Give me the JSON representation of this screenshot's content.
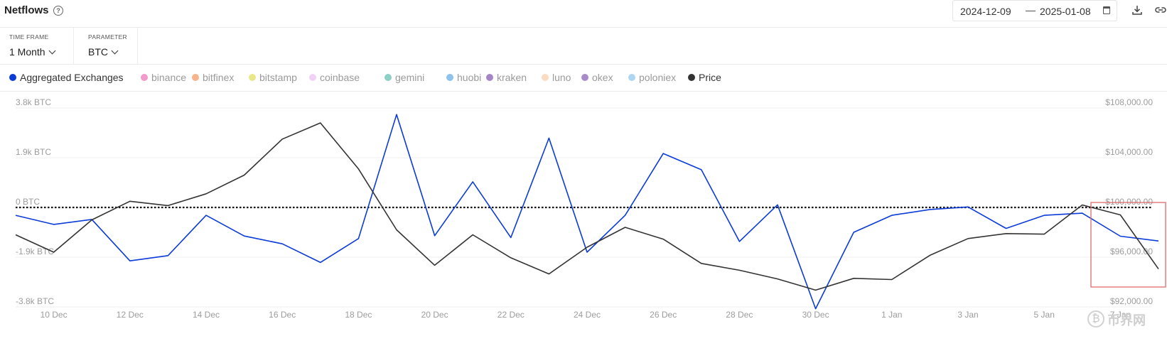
{
  "header": {
    "title": "Netflows",
    "help_icon": "?",
    "date_start": "2024-12-09",
    "date_sep": "—",
    "date_end": "2025-01-08",
    "icons": [
      "help-icon",
      "calendar-icon",
      "download-icon",
      "link-icon"
    ]
  },
  "controls": {
    "timeframe": {
      "label": "TIME FRAME",
      "value": "1 Month"
    },
    "parameter": {
      "label": "PARAMETER",
      "value": "BTC"
    }
  },
  "legend": [
    {
      "name": "Aggregated Exchanges",
      "color": "#0b3bd9",
      "active": true
    },
    {
      "name": "binance",
      "color": "#f29ac9",
      "active": false
    },
    {
      "name": "bitfinex",
      "color": "#f7b48c",
      "active": false
    },
    {
      "name": "bitstamp",
      "color": "#e8e88a",
      "active": false
    },
    {
      "name": "coinbase",
      "color": "#f0d2f5",
      "active": false
    },
    {
      "name": "gemini",
      "color": "#8ecfc6",
      "active": false
    },
    {
      "name": "huobi",
      "color": "#8ec3ee",
      "active": false
    },
    {
      "name": "kraken",
      "color": "#a585c5",
      "active": false
    },
    {
      "name": "luno",
      "color": "#f9dcc2",
      "active": false
    },
    {
      "name": "okex",
      "color": "#a98bc9",
      "active": false
    },
    {
      "name": "poloniex",
      "color": "#aed6f3",
      "active": false
    },
    {
      "name": "Price",
      "color": "#333333",
      "active": true
    }
  ],
  "chart_data": {
    "type": "line",
    "x": [
      "2024-12-09",
      "2024-12-10",
      "2024-12-11",
      "2024-12-12",
      "2024-12-13",
      "2024-12-14",
      "2024-12-15",
      "2024-12-16",
      "2024-12-17",
      "2024-12-18",
      "2024-12-19",
      "2024-12-20",
      "2024-12-21",
      "2024-12-22",
      "2024-12-23",
      "2024-12-24",
      "2024-12-25",
      "2024-12-26",
      "2024-12-27",
      "2024-12-28",
      "2024-12-29",
      "2024-12-30",
      "2024-12-31",
      "2025-01-01",
      "2025-01-02",
      "2025-01-03",
      "2025-01-04",
      "2025-01-05",
      "2025-01-06",
      "2025-01-07",
      "2025-01-08"
    ],
    "x_ticks": [
      "10 Dec",
      "12 Dec",
      "14 Dec",
      "16 Dec",
      "18 Dec",
      "20 Dec",
      "22 Dec",
      "24 Dec",
      "26 Dec",
      "28 Dec",
      "30 Dec",
      "1 Jan",
      "3 Jan",
      "5 Jan",
      "7 Jan"
    ],
    "left_axis": {
      "ticks": [
        "3.8k BTC",
        "1.9k BTC",
        "0 BTC",
        "-1.9k BTC",
        "-3.8k BTC"
      ],
      "range": [
        -3800,
        3800
      ]
    },
    "right_axis": {
      "ticks": [
        "$108,000.00",
        "$104,000.00",
        "$100,000.00",
        "$96,000.00",
        "$92,000.00"
      ],
      "range": [
        92000,
        108000
      ]
    },
    "zero_line": 0,
    "series": [
      {
        "name": "Aggregated Exchanges",
        "axis": "left",
        "color": "#0b3bd9",
        "values": [
          -300,
          -650,
          -460,
          -2040,
          -1840,
          -300,
          -1090,
          -1390,
          -2100,
          -1190,
          3550,
          -1080,
          980,
          -1150,
          2650,
          -1710,
          -300,
          2060,
          1440,
          -1300,
          100,
          -3870,
          -950,
          -300,
          -80,
          20,
          -800,
          -300,
          -220,
          -1100,
          -1280
        ]
      },
      {
        "name": "Price",
        "axis": "right",
        "color": "#333333",
        "values": [
          97800,
          96400,
          99000,
          100500,
          100150,
          101100,
          102600,
          105500,
          106800,
          103100,
          98200,
          95350,
          97800,
          95950,
          94650,
          96800,
          98400,
          97450,
          95500,
          94950,
          94250,
          93350,
          94300,
          94200,
          96150,
          97500,
          97900,
          97850,
          100200,
          99400,
          95050
        ]
      }
    ],
    "grid": true,
    "legend_position": "top-left"
  },
  "highlight_box": {
    "color": "#e06a6a"
  },
  "watermark": {
    "symbol": "₿",
    "text": "币界网"
  }
}
